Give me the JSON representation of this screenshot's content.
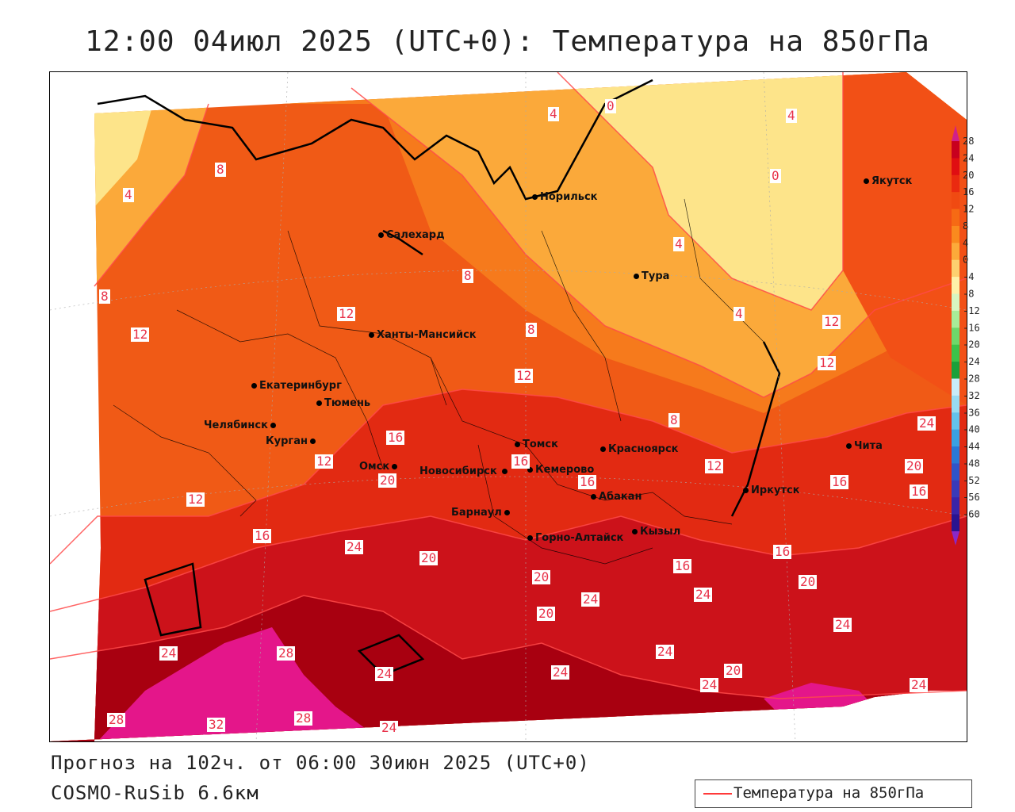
{
  "title": "12:00 04июл 2025 (UTC+0): Температура на 850гПа",
  "footer": {
    "forecast": "Прогноз на 102ч. от 06:00 30июн 2025 (UTC+0)",
    "model": "COSMO-RuSib 6.6км"
  },
  "legend": {
    "label": "Температура на 850гПа",
    "line_color": "#ff3a3a"
  },
  "colorbar": {
    "ticks": [
      "28",
      "24",
      "20",
      "16",
      "12",
      "8",
      "4",
      "0",
      "-4",
      "-8",
      "-12",
      "-16",
      "-20",
      "-24",
      "-28",
      "-32",
      "-36",
      "-40",
      "-44",
      "-48",
      "-52",
      "-56",
      "-60"
    ],
    "colors": [
      "#c8001e",
      "#e00e12",
      "#ea2a10",
      "#f04a12",
      "#f66a14",
      "#fa8a1e",
      "#fcaa3a",
      "#fdd070",
      "#fef0a8",
      "#d8f5c0",
      "#a8ec98",
      "#6ed86a",
      "#3cc24a",
      "#1aa03a",
      "#c8ecf8",
      "#98dcf2",
      "#64c2ec",
      "#3aa0e2",
      "#2a78d6",
      "#3054c8",
      "#3a3ab8",
      "#3a24a8",
      "#2a1490"
    ]
  },
  "cities": [
    {
      "name": "Салехард"
    },
    {
      "name": "Норильск"
    },
    {
      "name": "Якутск"
    },
    {
      "name": "Тура"
    },
    {
      "name": "Ханты-Мансийск"
    },
    {
      "name": "Екатеринбург"
    },
    {
      "name": "Тюмень"
    },
    {
      "name": "Челябинск"
    },
    {
      "name": "Курган"
    },
    {
      "name": "Омск"
    },
    {
      "name": "Томск"
    },
    {
      "name": "Новосибирск"
    },
    {
      "name": "Кемерово"
    },
    {
      "name": "Красноярск"
    },
    {
      "name": "Барнаул"
    },
    {
      "name": "Абакан"
    },
    {
      "name": "Горно-Алтайск"
    },
    {
      "name": "Кызыл"
    },
    {
      "name": "Иркутск"
    },
    {
      "name": "Чита"
    }
  ],
  "contour_labels": [
    "4",
    "0",
    "4",
    "0",
    "8",
    "4",
    "8",
    "8",
    "4",
    "8",
    "4",
    "12",
    "12",
    "12",
    "8",
    "12",
    "12",
    "16",
    "12",
    "8",
    "12",
    "20",
    "16",
    "16",
    "12",
    "16",
    "16",
    "20",
    "16",
    "24",
    "20",
    "24",
    "16",
    "16",
    "20",
    "24",
    "20",
    "24",
    "20",
    "24",
    "24",
    "20",
    "24",
    "24",
    "28",
    "24",
    "24",
    "28",
    "32",
    "28",
    "24",
    "24"
  ]
}
